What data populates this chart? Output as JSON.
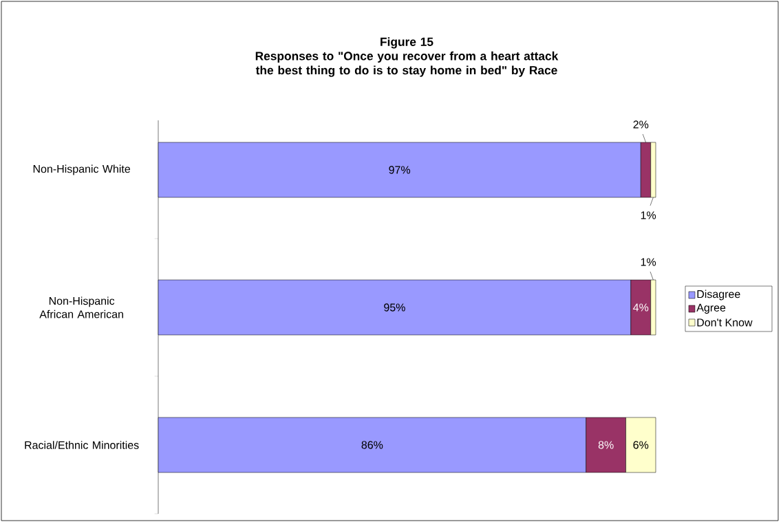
{
  "chart_data": {
    "type": "bar",
    "orientation": "horizontal",
    "stacked": true,
    "title": "Figure 15",
    "subtitle": "Responses to \"Once you recover from a heart attack the best thing to do is to stay home in bed\" by Race",
    "categories": [
      "Non-Hispanic White",
      "Non-Hispanic African American",
      "Racial/Ethnic Minorities"
    ],
    "series": [
      {
        "name": "Disagree",
        "color": "#9999ff",
        "values": [
          97,
          95,
          86
        ],
        "value_labels": [
          "97%",
          "95%",
          "86%"
        ]
      },
      {
        "name": "Agree",
        "color": "#993366",
        "values": [
          2,
          4,
          8
        ],
        "value_labels": [
          "2%",
          "4%",
          "8%"
        ]
      },
      {
        "name": "Don't Know",
        "color": "#ffffcc",
        "values": [
          1,
          1,
          6
        ],
        "value_labels": [
          "1%",
          "1%",
          "6%"
        ]
      }
    ],
    "xlim": [
      0,
      100
    ],
    "tick_labels": "y",
    "legend": "right"
  }
}
